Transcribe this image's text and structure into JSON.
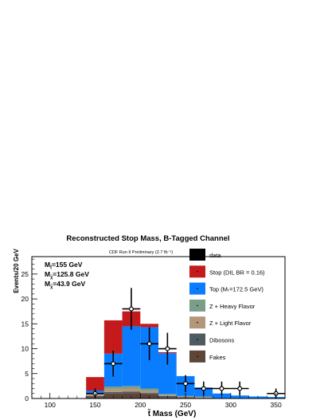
{
  "chart_data": {
    "type": "bar",
    "stacked": true,
    "title": "Reconstructed Stop Mass, B-Tagged Channel",
    "subtitle": "CDF Run II Preliminary (2.7 fb⁻¹)",
    "xlabel": "t̃ Mass (GeV)",
    "ylabel": "Events/20 GeV",
    "xlim": [
      80,
      360
    ],
    "ylim": [
      0,
      28.5
    ],
    "x_ticks": [
      100,
      150,
      200,
      250,
      300,
      350
    ],
    "y_ticks": [
      0,
      5,
      10,
      15,
      20,
      25
    ],
    "bin_width": 20,
    "bin_edges": [
      140,
      160,
      180,
      200,
      220,
      240,
      260,
      280,
      300,
      320,
      340,
      360
    ],
    "annotations": [
      {
        "main": "M",
        "sub": "t̃",
        "rest": "=155 GeV"
      },
      {
        "main": "M",
        "sub": "χ̃",
        "rest": "=125.8 GeV"
      },
      {
        "main": "M",
        "sub": "χ̃",
        "rest": "=43.9 GeV"
      }
    ],
    "series": [
      {
        "name": "Fakes",
        "color": "#5e4538",
        "values": [
          0.3,
          1.0,
          1.1,
          0.8,
          0.3,
          0.2,
          0.1,
          0.0,
          0.0,
          0.0,
          0.0
        ]
      },
      {
        "name": "Dibosons",
        "color": "#4f5a63",
        "values": [
          0.2,
          0.3,
          0.3,
          0.3,
          0.2,
          0.1,
          0.1,
          0.0,
          0.0,
          0.0,
          0.0
        ]
      },
      {
        "name": "Z + Light Flavor",
        "color": "#b4977a",
        "values": [
          0.3,
          0.6,
          0.6,
          0.5,
          0.2,
          0.1,
          0.1,
          0.0,
          0.0,
          0.0,
          0.0
        ]
      },
      {
        "name": "Z + Heavy Flavor",
        "color": "#7a9e88",
        "values": [
          0.2,
          0.5,
          0.5,
          0.4,
          0.2,
          0.1,
          0.1,
          0.0,
          0.0,
          0.0,
          0.0
        ]
      },
      {
        "name": "Top (Mₜ=172.5 GeV)",
        "color": "#0a7dff",
        "values": [
          0.6,
          6.6,
          12.0,
          12.3,
          8.2,
          4.0,
          1.8,
          1.0,
          0.6,
          0.4,
          0.3
        ]
      },
      {
        "name": "Stop (DIL BR = 0.16)",
        "color": "#c41a1c",
        "values": [
          2.7,
          6.7,
          3.0,
          0.7,
          0.2,
          0.0,
          0.0,
          0.0,
          0.0,
          0.0,
          0.0
        ]
      }
    ],
    "data": {
      "name": "data",
      "color": "#000000",
      "points": [
        {
          "x": 150,
          "y": 1,
          "yerr": 1.0
        },
        {
          "x": 170,
          "y": 7,
          "yerr": 2.6
        },
        {
          "x": 190,
          "y": 18,
          "yerr": 4.2
        },
        {
          "x": 210,
          "y": 11,
          "yerr": 3.3
        },
        {
          "x": 230,
          "y": 10,
          "yerr": 3.2
        },
        {
          "x": 250,
          "y": 3,
          "yerr": 1.7
        },
        {
          "x": 270,
          "y": 2,
          "yerr": 1.4
        },
        {
          "x": 290,
          "y": 2,
          "yerr": 1.4
        },
        {
          "x": 310,
          "y": 2,
          "yerr": 1.4
        },
        {
          "x": 350,
          "y": 1,
          "yerr": 1.0
        }
      ]
    },
    "legend": {
      "placement": "right",
      "entries": [
        {
          "label": "data",
          "color": "#000000"
        },
        {
          "label": "Stop (DIL BR = 0.16)",
          "color": "#c41a1c"
        },
        {
          "label": "Top (Mₜ=172.5 GeV)",
          "color": "#0a7dff"
        },
        {
          "label": "Z + Heavy Flavor",
          "color": "#7a9e88"
        },
        {
          "label": "Z + Light Flavor",
          "color": "#b4977a"
        },
        {
          "label": "Dibosons",
          "color": "#4f5a63"
        },
        {
          "label": "Fakes",
          "color": "#5e4538"
        }
      ]
    }
  }
}
